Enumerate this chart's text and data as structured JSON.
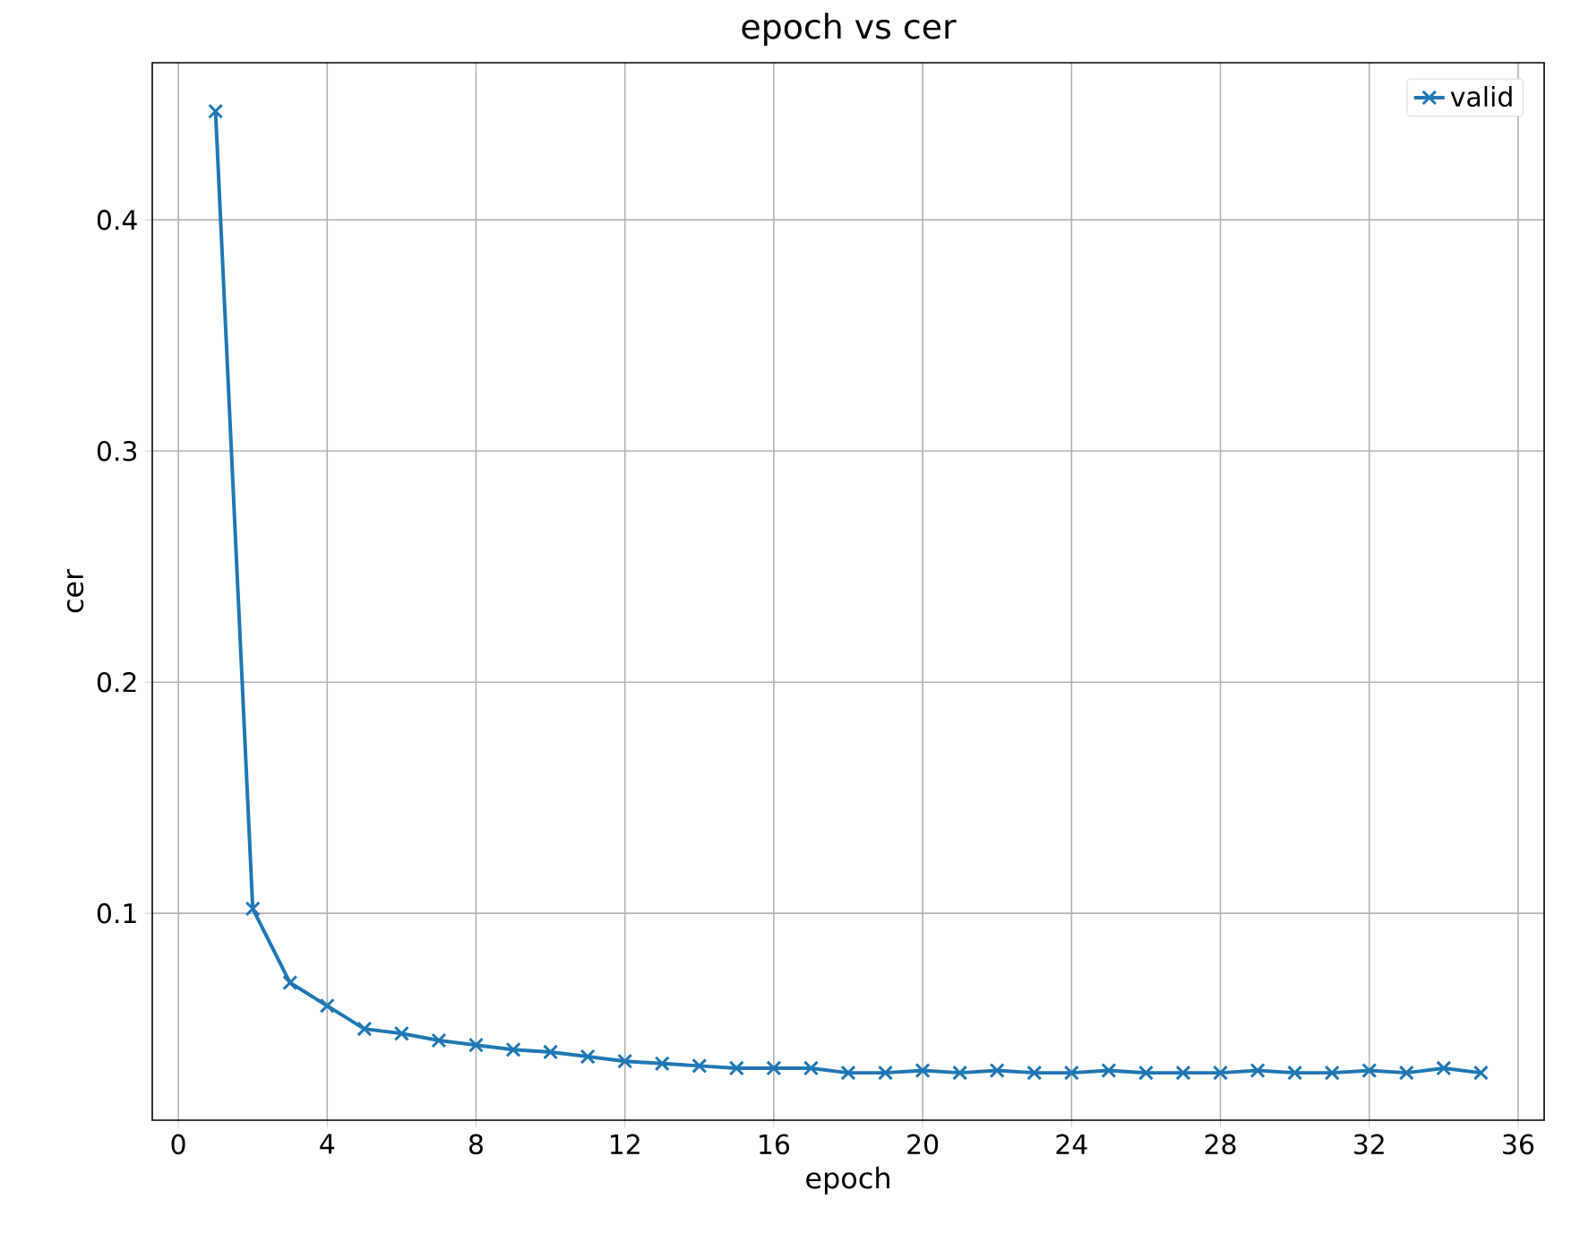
{
  "chart_data": {
    "type": "line",
    "title": "epoch vs cer",
    "xlabel": "epoch",
    "ylabel": "cer",
    "x": [
      1,
      2,
      3,
      4,
      5,
      6,
      7,
      8,
      9,
      10,
      11,
      12,
      13,
      14,
      15,
      16,
      17,
      18,
      19,
      20,
      21,
      22,
      23,
      24,
      25,
      26,
      27,
      28,
      29,
      30,
      31,
      32,
      33,
      34,
      35
    ],
    "series": [
      {
        "name": "valid",
        "color": "#1f77b4",
        "values": [
          0.447,
          0.102,
          0.07,
          0.06,
          0.05,
          0.048,
          0.045,
          0.043,
          0.041,
          0.04,
          0.038,
          0.036,
          0.035,
          0.034,
          0.033,
          0.033,
          0.033,
          0.031,
          0.031,
          0.032,
          0.031,
          0.032,
          0.031,
          0.031,
          0.032,
          0.031,
          0.031,
          0.031,
          0.032,
          0.031,
          0.031,
          0.032,
          0.031,
          0.033,
          0.031
        ]
      }
    ],
    "xlim": [
      -0.7,
      36.7
    ],
    "ylim": [
      0.0105,
      0.468
    ],
    "xticks": [
      0,
      4,
      8,
      12,
      16,
      20,
      24,
      28,
      32,
      36
    ],
    "yticks": [
      0.1,
      0.2,
      0.3,
      0.4
    ],
    "grid": true,
    "legend": "top right",
    "marker": "cross",
    "line_style": "solid"
  }
}
